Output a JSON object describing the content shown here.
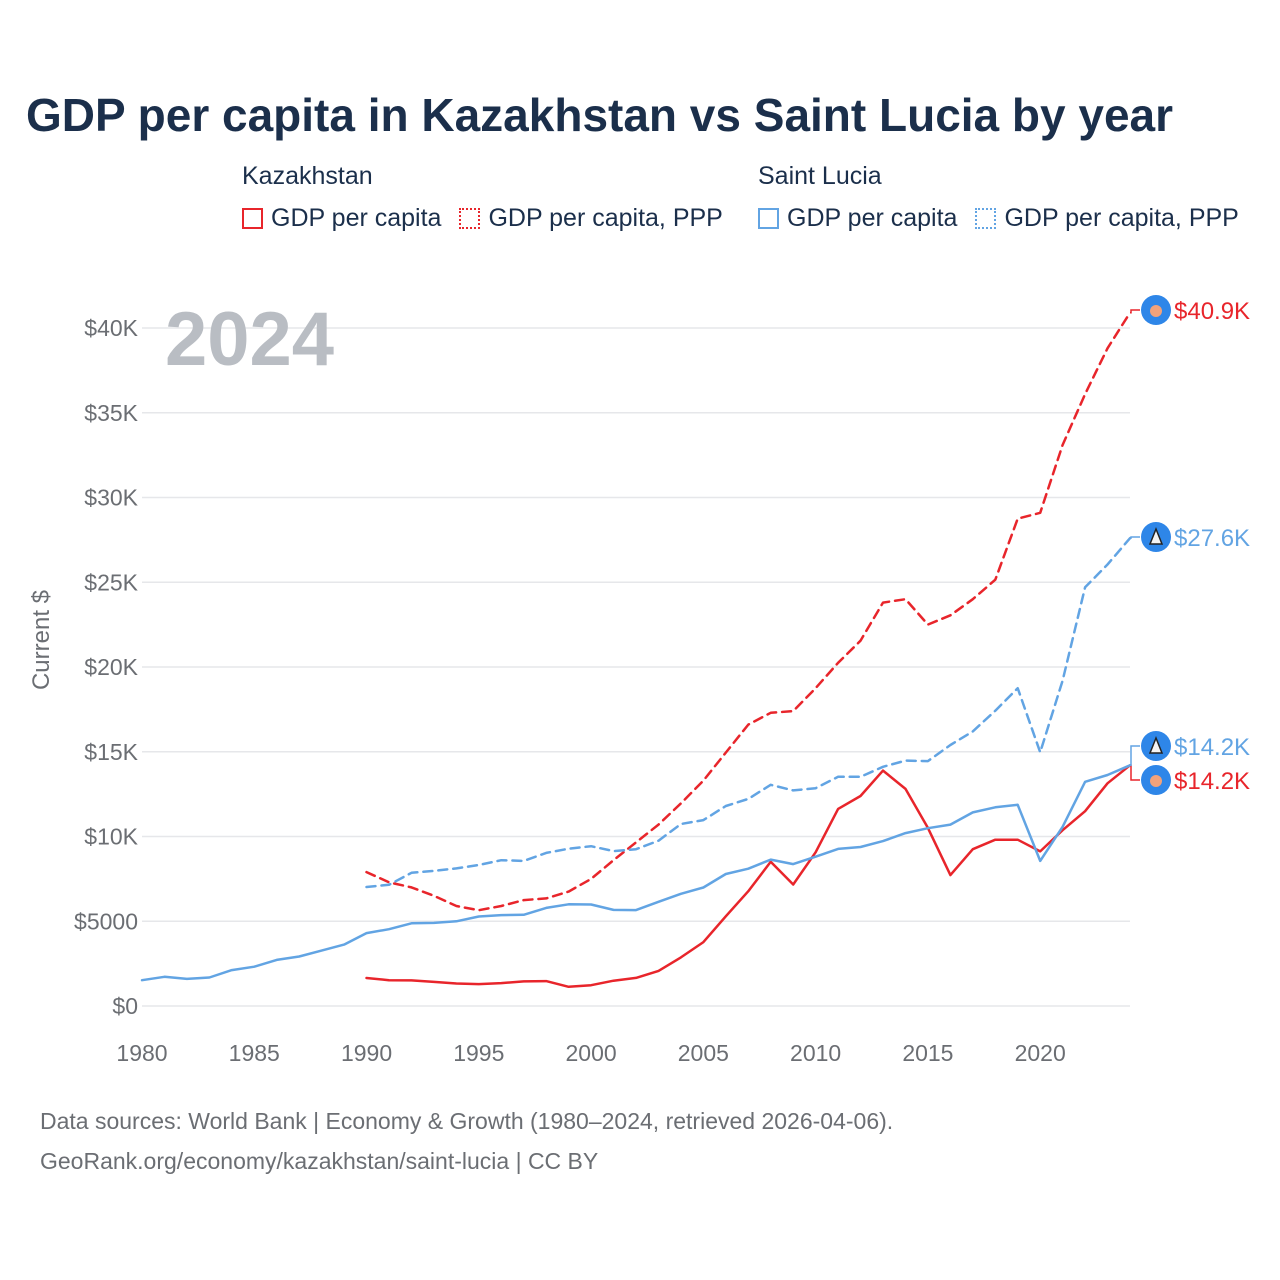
{
  "title": "GDP per capita in Kazakhstan vs Saint Lucia by year",
  "legend": {
    "groups": [
      {
        "country": "Kazakhstan",
        "color": "#e8252b",
        "items": [
          "GDP per capita",
          "GDP per capita, PPP"
        ]
      },
      {
        "country": "Saint Lucia",
        "color": "#62a4e3",
        "items": [
          "GDP per capita",
          "GDP per capita, PPP"
        ]
      }
    ]
  },
  "year_label": "2024",
  "y_axis_title": "Current $",
  "end_labels": {
    "kz_ppp": "$40.9K",
    "lc_ppp": "$27.6K",
    "lc_gdp": "$14.2K",
    "kz_gdp": "$14.2K"
  },
  "sources": {
    "line1": "Data sources: World Bank | Economy & Growth (1980–2024, retrieved 2026-04-06).",
    "line2": "GeoRank.org/economy/kazakhstan/saint-lucia | CC BY"
  },
  "chart_data": {
    "type": "line",
    "title": "GDP per capita in Kazakhstan vs Saint Lucia by year",
    "xlabel": "",
    "ylabel": "Current $",
    "xlim": [
      1980,
      2024
    ],
    "ylim": [
      0,
      40000
    ],
    "grid": true,
    "x_ticks": [
      1980,
      1985,
      1990,
      1995,
      2000,
      2005,
      2010,
      2015,
      2020
    ],
    "x_tick_labels": [
      "1980",
      "1985",
      "1990",
      "1995",
      "2000",
      "2005",
      "2010",
      "2015",
      "2020"
    ],
    "y_ticks": [
      0,
      5000,
      10000,
      15000,
      20000,
      25000,
      30000,
      35000,
      40000
    ],
    "y_tick_labels": [
      "$0",
      "$5000",
      "$10K",
      "$15K",
      "$20K",
      "$25K",
      "$30K",
      "$35K",
      "$40K"
    ],
    "series": [
      {
        "name": "Kazakhstan GDP per capita",
        "key": "kz_gdp",
        "color": "#e8252b",
        "dash": "solid",
        "start_year": 1990,
        "values": [
          1650,
          1520,
          1510,
          1420,
          1330,
          1290,
          1350,
          1450,
          1470,
          1130,
          1230,
          1490,
          1660,
          2070,
          2870,
          3770,
          5290,
          6770,
          8510,
          7170,
          9070,
          11630,
          12390,
          13890,
          12810,
          10510,
          7720,
          9250,
          9810,
          9810,
          9120,
          10370,
          11490,
          13140,
          14200
        ]
      },
      {
        "name": "Kazakhstan GDP per capita, PPP",
        "key": "kz_ppp",
        "color": "#e8252b",
        "dash": "dashed",
        "start_year": 1990,
        "values": [
          7900,
          7300,
          7000,
          6500,
          5900,
          5650,
          5900,
          6250,
          6350,
          6750,
          7500,
          8600,
          9650,
          10700,
          11950,
          13300,
          14950,
          16600,
          17300,
          17400,
          18750,
          20250,
          21550,
          23800,
          24000,
          22500,
          23050,
          24000,
          25150,
          28750,
          29100,
          33100,
          36100,
          38800,
          40900
        ]
      },
      {
        "name": "Saint Lucia GDP per capita",
        "key": "lc_gdp",
        "color": "#62a4e3",
        "dash": "solid",
        "start_year": 1980,
        "values": [
          1520,
          1720,
          1600,
          1680,
          2120,
          2320,
          2720,
          2920,
          3270,
          3620,
          4300,
          4530,
          4880,
          4900,
          5000,
          5280,
          5360,
          5380,
          5790,
          6000,
          5990,
          5670,
          5660,
          6150,
          6620,
          6990,
          7790,
          8100,
          8640,
          8370,
          8810,
          9270,
          9380,
          9730,
          10200,
          10490,
          10700,
          11420,
          11720,
          11870,
          8560,
          10570,
          13230,
          13630,
          14200
        ]
      },
      {
        "name": "Saint Lucia GDP per capita, PPP",
        "key": "lc_ppp",
        "color": "#62a4e3",
        "dash": "dashed",
        "start_year": 1990,
        "values": [
          7020,
          7150,
          7860,
          7970,
          8120,
          8320,
          8600,
          8560,
          9030,
          9280,
          9430,
          9140,
          9250,
          9750,
          10740,
          10970,
          11800,
          12220,
          13050,
          12720,
          12850,
          13520,
          13520,
          14110,
          14480,
          14450,
          15400,
          16200,
          17420,
          18750,
          14970,
          19200,
          24700,
          26050,
          27600
        ]
      }
    ]
  }
}
